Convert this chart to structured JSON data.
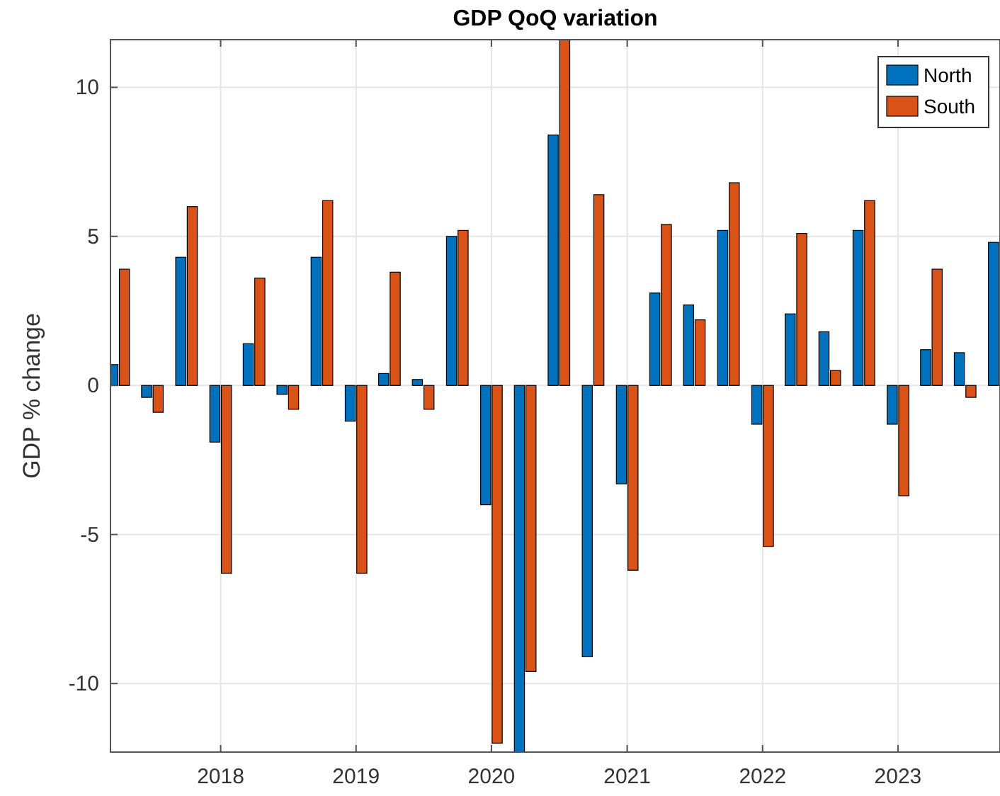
{
  "chart_data": {
    "type": "bar",
    "title": "GDP QoQ variation",
    "ylabel": "GDP % change",
    "x": [
      "2017-04",
      "2017-07",
      "2017-10",
      "2018-01",
      "2018-04",
      "2018-07",
      "2018-10",
      "2019-01",
      "2019-04",
      "2019-07",
      "2019-10",
      "2020-01",
      "2020-04",
      "2020-07",
      "2020-10",
      "2021-01",
      "2021-04",
      "2021-07",
      "2021-10",
      "2022-01",
      "2022-04",
      "2022-07",
      "2022-10",
      "2023-01",
      "2023-04",
      "2023-07",
      "2023-10"
    ],
    "series": [
      {
        "name": "North",
        "color": "#0072bd",
        "values": [
          0.7,
          -0.4,
          4.3,
          -1.9,
          1.4,
          -0.3,
          4.3,
          -1.2,
          0.4,
          0.2,
          5.0,
          -4.0,
          -12.3,
          8.4,
          -9.1,
          -3.3,
          3.1,
          2.7,
          5.2,
          -1.3,
          2.4,
          1.8,
          5.2,
          -1.3,
          1.2,
          1.1,
          4.8
        ]
      },
      {
        "name": "South",
        "color": "#d95319",
        "values": [
          3.9,
          -0.9,
          6.0,
          -6.3,
          3.6,
          -0.8,
          6.2,
          -6.3,
          3.8,
          -0.8,
          5.2,
          -12.0,
          -9.6,
          11.6,
          6.4,
          -6.2,
          5.4,
          2.2,
          6.8,
          -5.4,
          5.1,
          0.5,
          6.2,
          -3.7,
          3.9,
          -0.4,
          null
        ]
      }
    ],
    "xlim": [
      "2017-03-10",
      "2023-10-03"
    ],
    "xticks": [
      "2018",
      "2019",
      "2020",
      "2021",
      "2022",
      "2023"
    ],
    "ylim": [
      -12.3,
      11.6
    ],
    "yticks": [
      -10,
      -5,
      0,
      5,
      10
    ],
    "grid": true,
    "legend": "top right"
  }
}
